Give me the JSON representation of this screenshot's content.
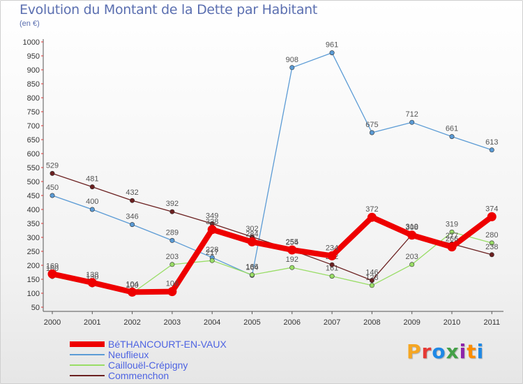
{
  "title": "Evolution du Montant de la Dette par Habitant",
  "subtitle": "(en €)",
  "logo_text": "Proxiti",
  "logo_colors": [
    "#f5a623",
    "#e53935",
    "#1e88e5",
    "#43a047",
    "#8e24aa",
    "#fb8c00",
    "#1e88e5"
  ],
  "chart_data": {
    "type": "line",
    "title": "Evolution du Montant de la Dette par Habitant",
    "subtitle": "(en €)",
    "xlabel": "",
    "ylabel": "",
    "ylim": [
      50,
      1000
    ],
    "y_ticks": [
      50,
      100,
      150,
      200,
      250,
      300,
      350,
      400,
      450,
      500,
      550,
      600,
      650,
      700,
      750,
      800,
      850,
      900,
      950,
      1000
    ],
    "categories": [
      "2000",
      "2001",
      "2002",
      "2003",
      "2004",
      "2005",
      "2006",
      "2007",
      "2008",
      "2009",
      "2010",
      "2011"
    ],
    "grid": false,
    "legend_position": "bottom-left",
    "series": [
      {
        "name": "Neuflieux",
        "color": "#5b9bd5",
        "values": [
          450,
          400,
          346,
          289,
          228,
          164,
          908,
          961,
          675,
          712,
          661,
          613
        ]
      },
      {
        "name": "Caillouël-Crépigny",
        "color": "#99dd66",
        "values": [
          160,
          130,
          100,
          203,
          217,
          166,
          192,
          161,
          128,
          203,
          319,
          280
        ]
      },
      {
        "name": "Commenchon",
        "color": "#6b2020",
        "values": [
          529,
          481,
          432,
          392,
          349,
          302,
          254,
          202,
          146,
          310,
          277,
          238
        ]
      },
      {
        "name": "BéTHANCOURT-EN-VAUX",
        "color": "#ee0000",
        "values": [
          169,
          138,
          104,
          106,
          328,
          284,
          255,
          234,
          372,
          308,
          266,
          374
        ]
      }
    ]
  }
}
